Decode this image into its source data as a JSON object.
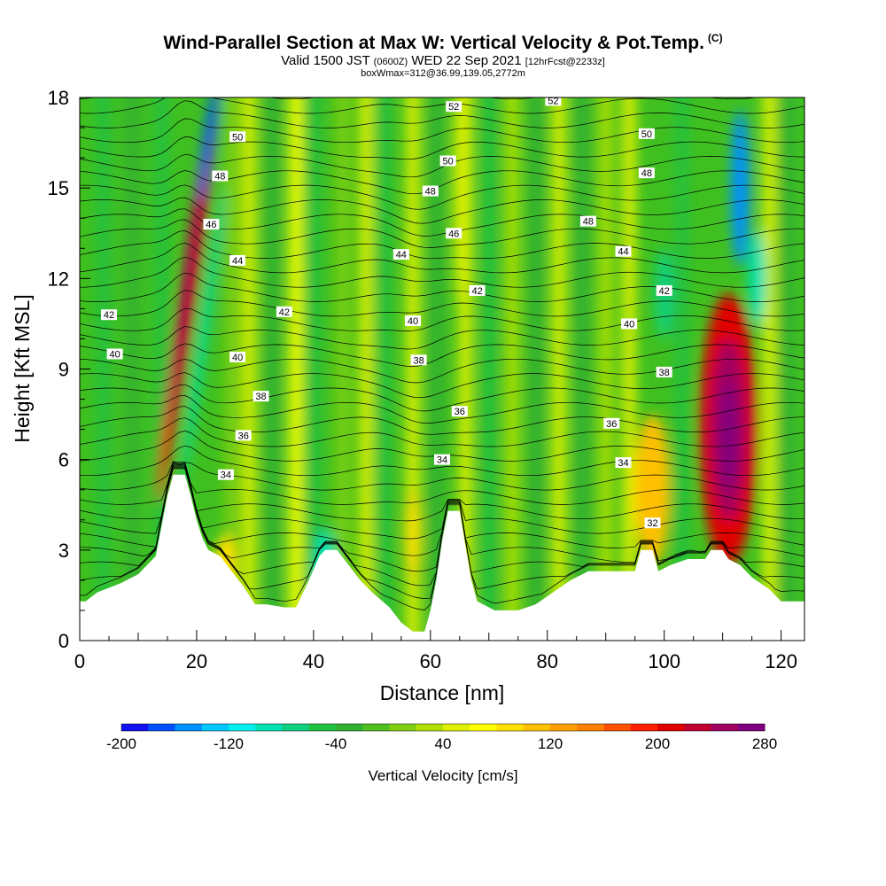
{
  "header": {
    "title": "Wind-Parallel Section at Max W: Vertical Velocity & Pot.Temp.",
    "title_mark": "(C)",
    "valid_a": "Valid 1500 JST",
    "valid_b": "(0600Z)",
    "valid_c": "WED 22 Sep 2021",
    "valid_d": "[12hrFcst@2233z]",
    "boxmax": "boxWmax=312@36.99,139.05,2772m"
  },
  "chart_data": {
    "type": "heatmap",
    "xlabel": "Distance [nm]",
    "ylabel": "Height [Kft MSL]",
    "xlim": [
      0,
      124
    ],
    "ylim": [
      0,
      18
    ],
    "x_ticks": [
      0,
      20,
      40,
      60,
      80,
      100,
      120
    ],
    "y_ticks": [
      0,
      3,
      6,
      9,
      12,
      15,
      18
    ],
    "colorbar": {
      "label": "Vertical Velocity [cm/s]",
      "ticks": [
        -200,
        -120,
        -40,
        40,
        120,
        200,
        280
      ],
      "min": -200,
      "max": 280,
      "step": 20,
      "colors": [
        "#1010f0",
        "#0050ff",
        "#0090ff",
        "#00c8ff",
        "#00f0f0",
        "#00e0b0",
        "#10d080",
        "#20c040",
        "#30b030",
        "#50c020",
        "#80d010",
        "#b0e000",
        "#e0f000",
        "#ffff00",
        "#ffe000",
        "#ffc000",
        "#ffa000",
        "#ff8000",
        "#ff5000",
        "#ff2000",
        "#e00000",
        "#c00030",
        "#a00060",
        "#800080"
      ]
    },
    "terrain_profile_kft": [
      [
        0,
        1.3
      ],
      [
        1,
        1.3
      ],
      [
        3,
        1.6
      ],
      [
        7,
        1.9
      ],
      [
        10,
        2.2
      ],
      [
        13,
        2.8
      ],
      [
        14,
        3.8
      ],
      [
        15,
        4.8
      ],
      [
        16,
        5.5
      ],
      [
        18,
        5.5
      ],
      [
        19,
        4.8
      ],
      [
        20,
        4.0
      ],
      [
        21,
        3.4
      ],
      [
        22,
        3.0
      ],
      [
        24,
        2.8
      ],
      [
        26,
        2.3
      ],
      [
        28,
        1.8
      ],
      [
        30,
        1.2
      ],
      [
        32,
        1.2
      ],
      [
        35,
        1.1
      ],
      [
        37,
        1.1
      ],
      [
        39,
        1.9
      ],
      [
        41,
        2.8
      ],
      [
        42,
        3.0
      ],
      [
        44,
        3.0
      ],
      [
        46,
        2.5
      ],
      [
        48,
        2.0
      ],
      [
        50,
        1.6
      ],
      [
        53,
        1.1
      ],
      [
        55,
        0.6
      ],
      [
        57,
        0.3
      ],
      [
        59,
        0.3
      ],
      [
        60,
        1.0
      ],
      [
        61,
        2.0
      ],
      [
        62,
        3.3
      ],
      [
        63,
        4.3
      ],
      [
        65,
        4.3
      ],
      [
        66,
        3.1
      ],
      [
        67,
        2.0
      ],
      [
        68,
        1.3
      ],
      [
        71,
        1.0
      ],
      [
        75,
        1.0
      ],
      [
        78,
        1.2
      ],
      [
        81,
        1.6
      ],
      [
        84,
        2.0
      ],
      [
        87,
        2.3
      ],
      [
        95,
        2.3
      ],
      [
        96,
        3.0
      ],
      [
        98,
        3.0
      ],
      [
        99,
        2.3
      ],
      [
        101,
        2.5
      ],
      [
        104,
        2.7
      ],
      [
        107,
        2.7
      ],
      [
        108,
        3.0
      ],
      [
        110,
        3.0
      ],
      [
        111,
        2.7
      ],
      [
        113,
        2.5
      ],
      [
        115,
        2.1
      ],
      [
        118,
        1.7
      ],
      [
        120,
        1.3
      ],
      [
        124,
        1.3
      ]
    ],
    "w_features": [
      {
        "type": "updraft",
        "x": 18.5,
        "y": 12,
        "w": 240
      },
      {
        "type": "downdraft",
        "x": 22,
        "y": 16.5,
        "w": -180
      },
      {
        "type": "updraft",
        "x": 111,
        "y": 7,
        "w": 280
      },
      {
        "type": "updraft",
        "x": 98,
        "y": 5,
        "w": 120
      },
      {
        "type": "downdraft",
        "x": 113,
        "y": 15,
        "w": -150
      },
      {
        "type": "updraft",
        "x": 57,
        "y": 3.5,
        "w": 80
      }
    ],
    "isentrope_labels": [
      {
        "value": "32",
        "x": 98,
        "y": 3.9
      },
      {
        "value": "34",
        "x": 25,
        "y": 5.5
      },
      {
        "value": "34",
        "x": 62,
        "y": 6.0
      },
      {
        "value": "34",
        "x": 93,
        "y": 5.9
      },
      {
        "value": "36",
        "x": 28,
        "y": 6.8
      },
      {
        "value": "36",
        "x": 65,
        "y": 7.6
      },
      {
        "value": "36",
        "x": 91,
        "y": 7.2
      },
      {
        "value": "38",
        "x": 31,
        "y": 8.1
      },
      {
        "value": "38",
        "x": 58,
        "y": 9.3
      },
      {
        "value": "38",
        "x": 100,
        "y": 8.9
      },
      {
        "value": "40",
        "x": 6,
        "y": 9.5
      },
      {
        "value": "40",
        "x": 27,
        "y": 9.4
      },
      {
        "value": "40",
        "x": 57,
        "y": 10.6
      },
      {
        "value": "40",
        "x": 94,
        "y": 10.5
      },
      {
        "value": "42",
        "x": 5,
        "y": 10.8
      },
      {
        "value": "42",
        "x": 35,
        "y": 10.9
      },
      {
        "value": "42",
        "x": 68,
        "y": 11.6
      },
      {
        "value": "42",
        "x": 100,
        "y": 11.6
      },
      {
        "value": "44",
        "x": 27,
        "y": 12.6
      },
      {
        "value": "44",
        "x": 55,
        "y": 12.8
      },
      {
        "value": "44",
        "x": 93,
        "y": 12.9
      },
      {
        "value": "46",
        "x": 22.5,
        "y": 13.8
      },
      {
        "value": "46",
        "x": 64,
        "y": 13.5
      },
      {
        "value": "48",
        "x": 24,
        "y": 15.4
      },
      {
        "value": "48",
        "x": 60,
        "y": 14.9
      },
      {
        "value": "48",
        "x": 87,
        "y": 13.9
      },
      {
        "value": "48",
        "x": 97,
        "y": 15.5
      },
      {
        "value": "50",
        "x": 27,
        "y": 16.7
      },
      {
        "value": "50",
        "x": 63,
        "y": 15.9
      },
      {
        "value": "50",
        "x": 97,
        "y": 16.8
      },
      {
        "value": "52",
        "x": 64,
        "y": 17.7
      },
      {
        "value": "52",
        "x": 81,
        "y": 17.9
      }
    ]
  }
}
